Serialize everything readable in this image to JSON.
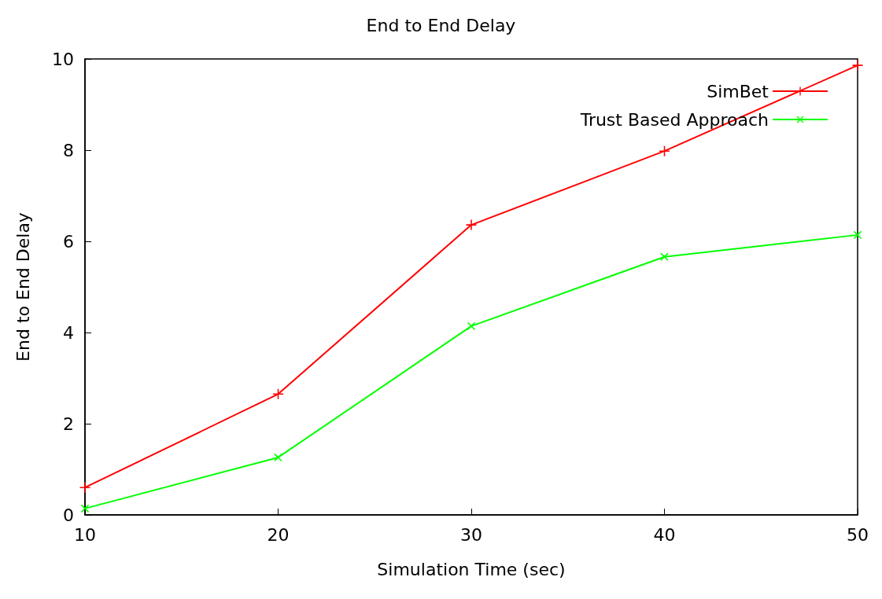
{
  "chart_data": {
    "type": "line",
    "title": "End to End Delay",
    "xlabel": "Simulation Time (sec)",
    "ylabel": "End to End Delay",
    "x": [
      10,
      20,
      30,
      40,
      50
    ],
    "series": [
      {
        "name": "SimBet",
        "color": "#ff0000",
        "values": [
          0.6,
          2.65,
          6.36,
          7.98,
          9.86
        ]
      },
      {
        "name": "Trust Based Approach",
        "color": "#00ff00",
        "values": [
          0.14,
          1.26,
          4.14,
          5.66,
          6.14
        ]
      }
    ],
    "xlim": [
      10,
      50
    ],
    "xticks": [
      10,
      20,
      30,
      40,
      50
    ],
    "ylim": [
      0,
      10
    ],
    "yticks": [
      0,
      2,
      4,
      6,
      8,
      10
    ],
    "grid": false,
    "legend": "top right",
    "marker": "cross",
    "line_style": "solid"
  }
}
